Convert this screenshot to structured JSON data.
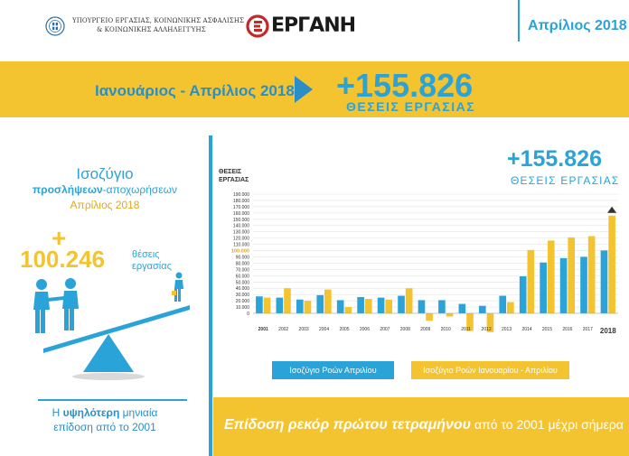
{
  "header": {
    "ministry_line1": "ΥΠΟΥΡΓΕΙΟ ΕΡΓΑΣΙΑΣ, ΚΟΙΝΩΝΙΚΗΣ ΑΣΦΑΛΙΣΗΣ",
    "ministry_line2": "& ΚΟΙΝΩΝΙΚΗΣ ΑΛΛΗΛΕΓΓΥΗΣ",
    "brand": "ΕΡΓΑΝΗ",
    "month": "Απρίλιος 2018"
  },
  "band": {
    "period": "Ιανουάριος - Απρίλιος 2018",
    "value": "+155.826",
    "unit": "ΘΕΣΕΙΣ ΕΡΓΑΣΙΑΣ"
  },
  "left": {
    "title1": "Ισοζύγιο",
    "title2_bold": "προσλήψεων",
    "title2_rest": "-αποχωρήσεων",
    "title3": "Απρίλιος 2018",
    "plus": "+",
    "value": "100.246",
    "unit1": "θέσεις",
    "unit2": "εργασίας",
    "foot_pre": "Η",
    "foot_bold": "υψηλότερη",
    "foot_post": "μηνιαία",
    "foot_line2": "επίδοση από το 2001"
  },
  "chart_panel": {
    "value": "+155.826",
    "unit": "ΘΕΣΕΙΣ ΕΡΓΑΣΙΑΣ",
    "ylabel1": "ΘΕΣΕΙΣ",
    "ylabel2": "ΕΡΓΑΣΙΑΣ"
  },
  "bottom": {
    "bold": "Επίδοση ρεκόρ πρώτου τετραμήνου",
    "rest": "από το 2001 μέχρι σήμερα"
  },
  "colors": {
    "blue": "#2aa3d8",
    "yellow": "#f4c430",
    "highlight_tick": "#e0a820"
  },
  "chart_data": {
    "type": "bar",
    "title": "",
    "xlabel": "",
    "ylabel": "ΘΕΣΕΙΣ ΕΡΓΑΣΙΑΣ",
    "ylim": [
      -30000,
      190000
    ],
    "yticks": [
      0,
      10000,
      20000,
      30000,
      40000,
      50000,
      60000,
      70000,
      80000,
      90000,
      100000,
      110000,
      120000,
      130000,
      140000,
      150000,
      160000,
      170000,
      180000,
      190000
    ],
    "ytick_labels": [
      "0",
      "10.000",
      "20.000",
      "30.000",
      "40.000",
      "50.000",
      "60.000",
      "70.000",
      "80.000",
      "90.000",
      "100.000",
      "110.000",
      "120.000",
      "130.000",
      "140.000",
      "150.000",
      "160.000",
      "170.000",
      "180.000",
      "190.000"
    ],
    "highlight_tick": "100.000",
    "categories": [
      "2001",
      "2002",
      "2003",
      "2004",
      "2005",
      "2006",
      "2007",
      "2008",
      "2009",
      "2010",
      "2011",
      "2012",
      "2013",
      "2014",
      "2015",
      "2016",
      "2017",
      "2018"
    ],
    "series": [
      {
        "name": "Ισοζύγιο Ροών Απριλίου",
        "color": "#2aa3d8",
        "values": [
          27000,
          25000,
          22000,
          29000,
          21000,
          26000,
          25000,
          28000,
          21000,
          21000,
          15000,
          12000,
          28000,
          59000,
          81000,
          88000,
          90000,
          100246
        ]
      },
      {
        "name": "Ισοζύγιο Ροών Ιανουαρίου - Απριλίου",
        "color": "#f4c430",
        "values": [
          25000,
          40000,
          20000,
          38000,
          10000,
          23000,
          22000,
          40000,
          -12000,
          -5000,
          -28000,
          -30000,
          18000,
          101000,
          116000,
          121000,
          123000,
          155826
        ]
      }
    ],
    "legend": [
      "Ισοζύγιο Ροών Απριλίου",
      "Ισοζύγιο Ροών Ιανουαρίου - Απριλίου"
    ]
  }
}
